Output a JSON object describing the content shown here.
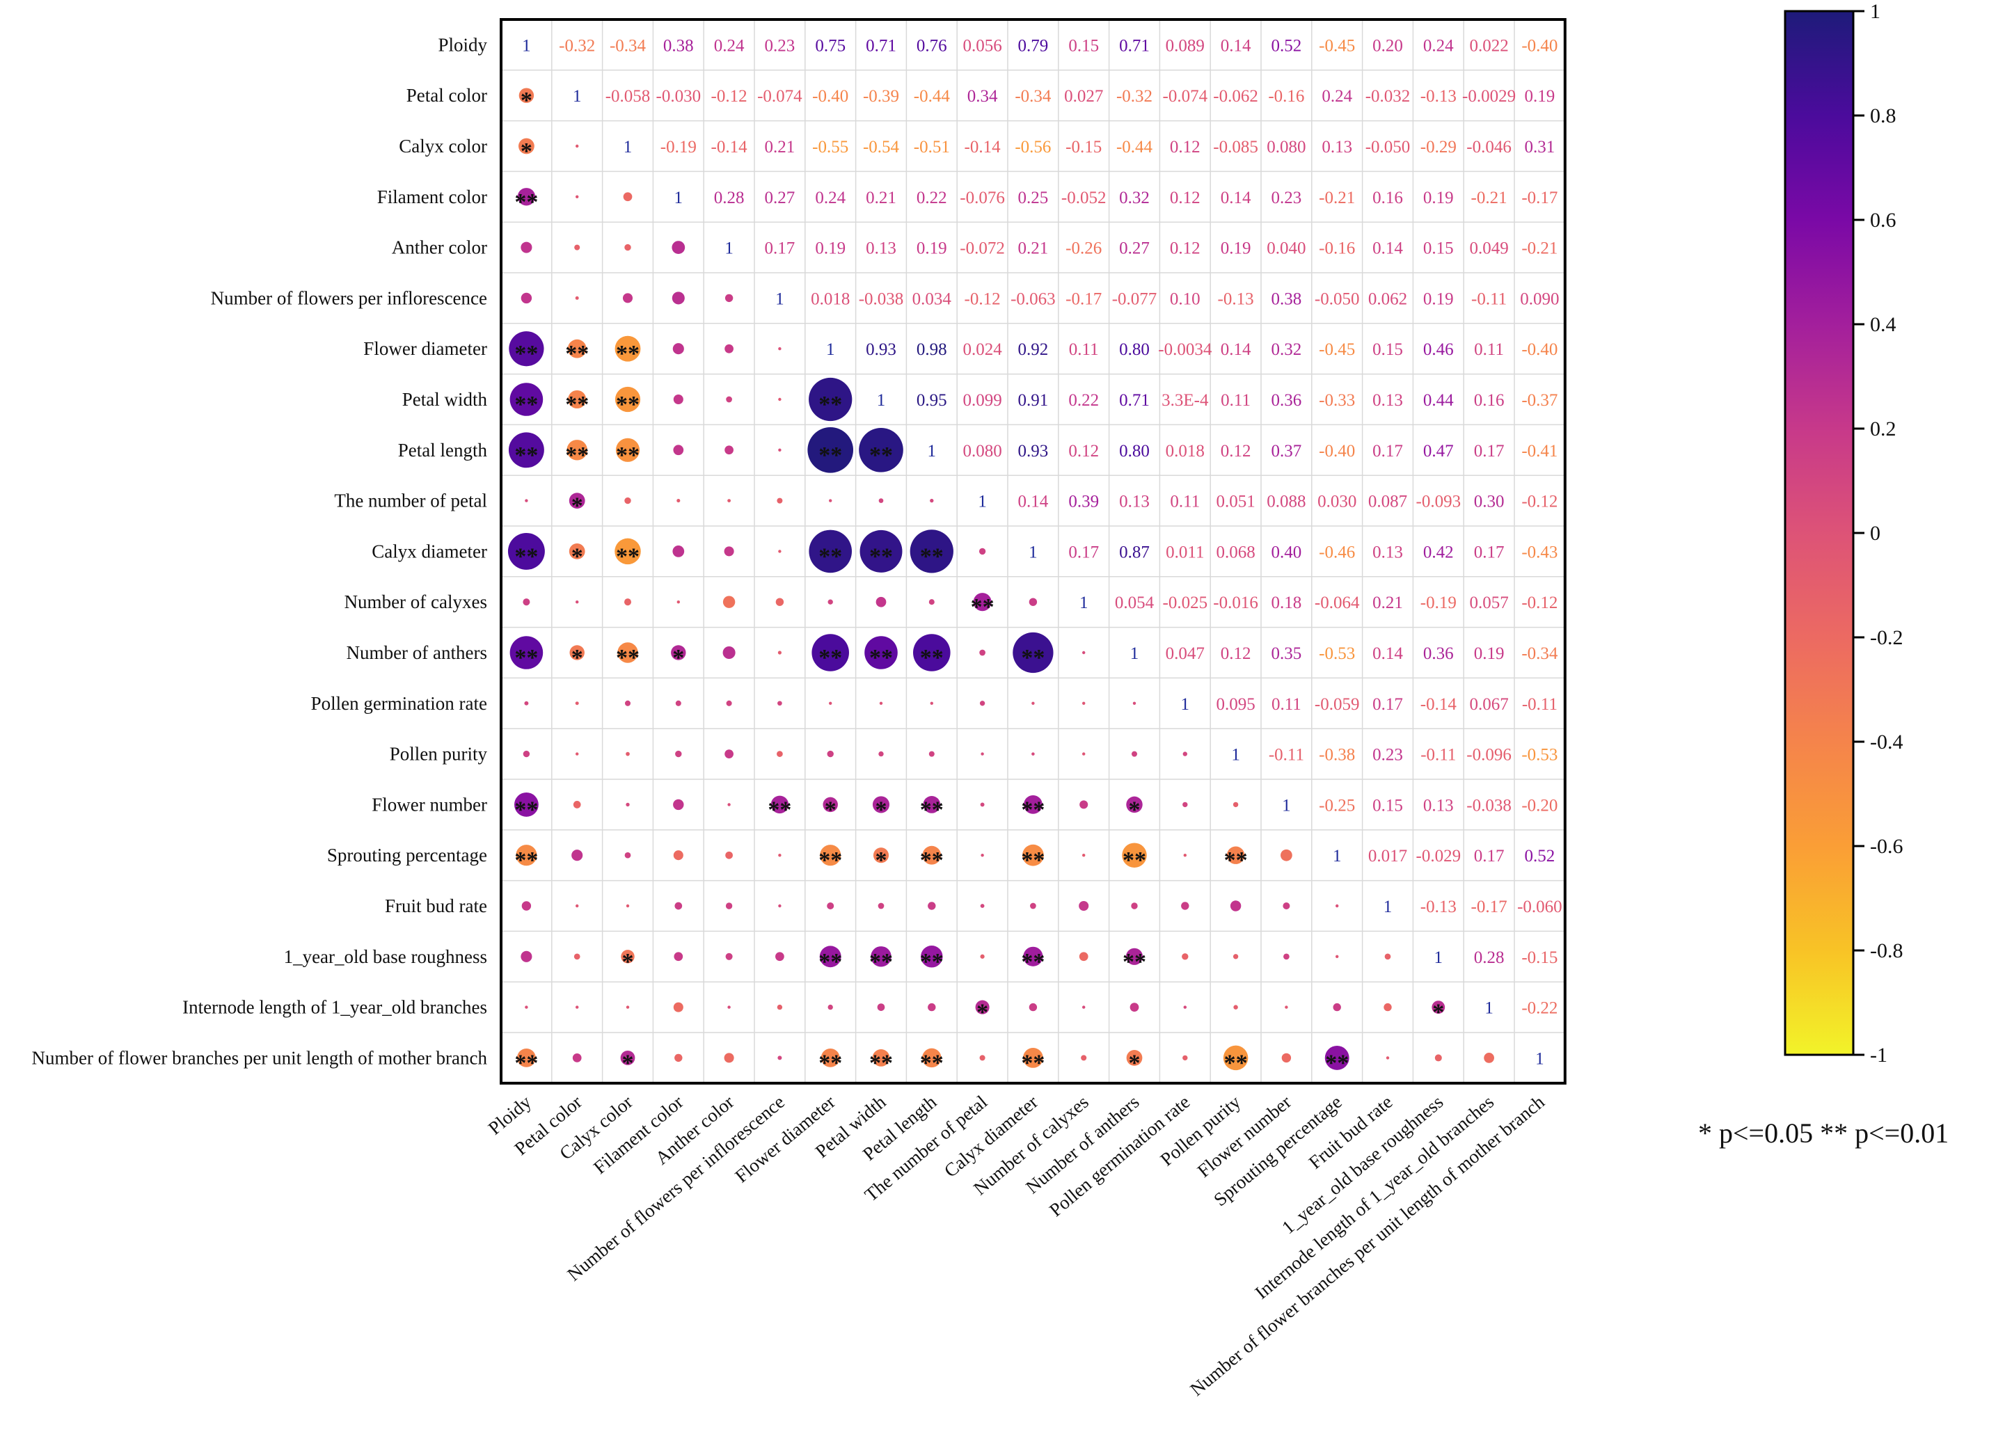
{
  "chart_data": {
    "type": "heatmap",
    "title": "",
    "variables": [
      "Ploidy",
      "Petal color",
      "Calyx color",
      "Filament color",
      "Anther color",
      "Number of flowers per inflorescence",
      "Flower diameter",
      "Petal width",
      "Petal length",
      "The number of petal",
      "Calyx diameter",
      "Number of calyxes",
      "Number of anthers",
      "Pollen germination rate",
      "Pollen purity",
      "Flower number",
      "Sprouting percentage",
      "Fruit bud rate",
      "1_year_old base roughness",
      "Internode length of 1_year_old branches",
      "Number of flower branches per unit length of mother branch"
    ],
    "upper_labels": [
      [
        "1",
        "-0.32",
        "-0.34",
        "0.38",
        "0.24",
        "0.23",
        "0.75",
        "0.71",
        "0.76",
        "0.056",
        "0.79",
        "0.15",
        "0.71",
        "0.089",
        "0.14",
        "0.52",
        "-0.45",
        "0.20",
        "0.24",
        "0.022",
        "-0.40"
      ],
      [
        "",
        "1",
        "-0.058",
        "-0.030",
        "-0.12",
        "-0.074",
        "-0.40",
        "-0.39",
        "-0.44",
        "0.34",
        "-0.34",
        "0.027",
        "-0.32",
        "-0.074",
        "-0.062",
        "-0.16",
        "0.24",
        "-0.032",
        "-0.13",
        "-0.0029",
        "0.19"
      ],
      [
        "",
        "",
        "1",
        "-0.19",
        "-0.14",
        "0.21",
        "-0.55",
        "-0.54",
        "-0.51",
        "-0.14",
        "-0.56",
        "-0.15",
        "-0.44",
        "0.12",
        "-0.085",
        "0.080",
        "0.13",
        "-0.050",
        "-0.29",
        "-0.046",
        "0.31"
      ],
      [
        "",
        "",
        "",
        "1",
        "0.28",
        "0.27",
        "0.24",
        "0.21",
        "0.22",
        "-0.076",
        "0.25",
        "-0.052",
        "0.32",
        "0.12",
        "0.14",
        "0.23",
        "-0.21",
        "0.16",
        "0.19",
        "-0.21",
        "-0.17"
      ],
      [
        "",
        "",
        "",
        "",
        "1",
        "0.17",
        "0.19",
        "0.13",
        "0.19",
        "-0.072",
        "0.21",
        "-0.26",
        "0.27",
        "0.12",
        "0.19",
        "0.040",
        "-0.16",
        "0.14",
        "0.15",
        "0.049",
        "-0.21"
      ],
      [
        "",
        "",
        "",
        "",
        "",
        "1",
        "0.018",
        "-0.038",
        "0.034",
        "-0.12",
        "-0.063",
        "-0.17",
        "-0.077",
        "0.10",
        "-0.13",
        "0.38",
        "-0.050",
        "0.062",
        "0.19",
        "-0.11",
        "0.090"
      ],
      [
        "",
        "",
        "",
        "",
        "",
        "",
        "1",
        "0.93",
        "0.98",
        "0.024",
        "0.92",
        "0.11",
        "0.80",
        "-0.0034",
        "0.14",
        "0.32",
        "-0.45",
        "0.15",
        "0.46",
        "0.11",
        "-0.40"
      ],
      [
        "",
        "",
        "",
        "",
        "",
        "",
        "",
        "1",
        "0.95",
        "0.099",
        "0.91",
        "0.22",
        "0.71",
        "3.3E-4",
        "0.11",
        "0.36",
        "-0.33",
        "0.13",
        "0.44",
        "0.16",
        "-0.37"
      ],
      [
        "",
        "",
        "",
        "",
        "",
        "",
        "",
        "",
        "1",
        "0.080",
        "0.93",
        "0.12",
        "0.80",
        "0.018",
        "0.12",
        "0.37",
        "-0.40",
        "0.17",
        "0.47",
        "0.17",
        "-0.41"
      ],
      [
        "",
        "",
        "",
        "",
        "",
        "",
        "",
        "",
        "",
        "1",
        "0.14",
        "0.39",
        "0.13",
        "0.11",
        "0.051",
        "0.088",
        "0.030",
        "0.087",
        "-0.093",
        "0.30",
        "-0.12"
      ],
      [
        "",
        "",
        "",
        "",
        "",
        "",
        "",
        "",
        "",
        "",
        "1",
        "0.17",
        "0.87",
        "0.011",
        "0.068",
        "0.40",
        "-0.46",
        "0.13",
        "0.42",
        "0.17",
        "-0.43"
      ],
      [
        "",
        "",
        "",
        "",
        "",
        "",
        "",
        "",
        "",
        "",
        "",
        "1",
        "0.054",
        "-0.025",
        "-0.016",
        "0.18",
        "-0.064",
        "0.21",
        "-0.19",
        "0.057",
        "-0.12"
      ],
      [
        "",
        "",
        "",
        "",
        "",
        "",
        "",
        "",
        "",
        "",
        "",
        "",
        "1",
        "0.047",
        "0.12",
        "0.35",
        "-0.53",
        "0.14",
        "0.36",
        "0.19",
        "-0.34"
      ],
      [
        "",
        "",
        "",
        "",
        "",
        "",
        "",
        "",
        "",
        "",
        "",
        "",
        "",
        "1",
        "0.095",
        "0.11",
        "-0.059",
        "0.17",
        "-0.14",
        "0.067",
        "-0.11"
      ],
      [
        "",
        "",
        "",
        "",
        "",
        "",
        "",
        "",
        "",
        "",
        "",
        "",
        "",
        "",
        "1",
        "-0.11",
        "-0.38",
        "0.23",
        "-0.11",
        "-0.096",
        "-0.53"
      ],
      [
        "",
        "",
        "",
        "",
        "",
        "",
        "",
        "",
        "",
        "",
        "",
        "",
        "",
        "",
        "",
        "1",
        "-0.25",
        "0.15",
        "0.13",
        "-0.038",
        "-0.20"
      ],
      [
        "",
        "",
        "",
        "",
        "",
        "",
        "",
        "",
        "",
        "",
        "",
        "",
        "",
        "",
        "",
        "",
        "1",
        "0.017",
        "-0.029",
        "0.17",
        "0.52"
      ],
      [
        "",
        "",
        "",
        "",
        "",
        "",
        "",
        "",
        "",
        "",
        "",
        "",
        "",
        "",
        "",
        "",
        "",
        "1",
        "-0.13",
        "-0.17",
        "-0.060"
      ],
      [
        "",
        "",
        "",
        "",
        "",
        "",
        "",
        "",
        "",
        "",
        "",
        "",
        "",
        "",
        "",
        "",
        "",
        "",
        "1",
        "0.28",
        "-0.15"
      ],
      [
        "",
        "",
        "",
        "",
        "",
        "",
        "",
        "",
        "",
        "",
        "",
        "",
        "",
        "",
        "",
        "",
        "",
        "",
        "",
        "1",
        "-0.22"
      ],
      [
        "",
        "",
        "",
        "",
        "",
        "",
        "",
        "",
        "",
        "",
        "",
        "",
        "",
        "",
        "",
        "",
        "",
        "",
        "",
        "",
        "1"
      ]
    ],
    "significance": [
      [
        "",
        "",
        "",
        "",
        "",
        "",
        "",
        "",
        "",
        "",
        "",
        "",
        "",
        "",
        "",
        "",
        "",
        "",
        "",
        "",
        ""
      ],
      [
        "*",
        "",
        "",
        "",
        "",
        "",
        "",
        "",
        "",
        "",
        "",
        "",
        "",
        "",
        "",
        "",
        "",
        "",
        "",
        "",
        ""
      ],
      [
        "*",
        "",
        "",
        "",
        "",
        "",
        "",
        "",
        "",
        "",
        "",
        "",
        "",
        "",
        "",
        "",
        "",
        "",
        "",
        "",
        ""
      ],
      [
        "**",
        "",
        "",
        "",
        "",
        "",
        "",
        "",
        "",
        "",
        "",
        "",
        "",
        "",
        "",
        "",
        "",
        "",
        "",
        "",
        ""
      ],
      [
        "",
        "",
        "",
        "",
        "",
        "",
        "",
        "",
        "",
        "",
        "",
        "",
        "",
        "",
        "",
        "",
        "",
        "",
        "",
        "",
        ""
      ],
      [
        "",
        "",
        "",
        "",
        "",
        "",
        "",
        "",
        "",
        "",
        "",
        "",
        "",
        "",
        "",
        "",
        "",
        "",
        "",
        "",
        ""
      ],
      [
        "**",
        "**",
        "**",
        "",
        "",
        "",
        "",
        "",
        "",
        "",
        "",
        "",
        "",
        "",
        "",
        "",
        "",
        "",
        "",
        "",
        ""
      ],
      [
        "**",
        "**",
        "**",
        "",
        "",
        "",
        "**",
        "",
        "",
        "",
        "",
        "",
        "",
        "",
        "",
        "",
        "",
        "",
        "",
        "",
        ""
      ],
      [
        "**",
        "**",
        "**",
        "",
        "",
        "",
        "**",
        "**",
        "",
        "",
        "",
        "",
        "",
        "",
        "",
        "",
        "",
        "",
        "",
        "",
        ""
      ],
      [
        "",
        "*",
        "",
        "",
        "",
        "",
        "",
        "",
        "",
        "",
        "",
        "",
        "",
        "",
        "",
        "",
        "",
        "",
        "",
        "",
        ""
      ],
      [
        "**",
        "*",
        "**",
        "",
        "",
        "",
        "**",
        "**",
        "**",
        "",
        "",
        "",
        "",
        "",
        "",
        "",
        "",
        "",
        "",
        "",
        ""
      ],
      [
        "",
        "",
        "",
        "",
        "",
        "",
        "",
        "",
        "",
        "**",
        "",
        "",
        "",
        "",
        "",
        "",
        "",
        "",
        "",
        "",
        ""
      ],
      [
        "**",
        "*",
        "**",
        "*",
        "",
        "",
        "**",
        "**",
        "**",
        "",
        "**",
        "",
        "",
        "",
        "",
        "",
        "",
        "",
        "",
        "",
        ""
      ],
      [
        "",
        "",
        "",
        "",
        "",
        "",
        "",
        "",
        "",
        "",
        "",
        "",
        "",
        "",
        "",
        "",
        "",
        "",
        "",
        "",
        ""
      ],
      [
        "",
        "",
        "",
        "",
        "",
        "",
        "",
        "",
        "",
        "",
        "",
        "",
        "",
        "",
        "",
        "",
        "",
        "",
        "",
        "",
        ""
      ],
      [
        "**",
        "",
        "",
        "",
        "",
        "**",
        "*",
        "*",
        "**",
        "",
        "**",
        "",
        "*",
        "",
        "",
        "",
        "",
        "",
        "",
        "",
        ""
      ],
      [
        "**",
        "",
        "",
        "",
        "",
        "",
        "**",
        "*",
        "**",
        "",
        "**",
        "",
        "**",
        "",
        "**",
        "",
        "",
        "",
        "",
        "",
        ""
      ],
      [
        "",
        "",
        "",
        "",
        "",
        "",
        "",
        "",
        "",
        "",
        "",
        "",
        "",
        "",
        "",
        "",
        "",
        "",
        "",
        "",
        ""
      ],
      [
        "",
        "",
        "*",
        "",
        "",
        "",
        "**",
        "**",
        "**",
        "",
        "**",
        "",
        "**",
        "",
        "",
        "",
        "",
        "",
        "",
        "",
        ""
      ],
      [
        "",
        "",
        "",
        "",
        "",
        "",
        "",
        "",
        "",
        "*",
        "",
        "",
        "",
        "",
        "",
        "",
        "",
        "",
        "*",
        "",
        ""
      ],
      [
        "**",
        "",
        "*",
        "",
        "",
        "",
        "**",
        "**",
        "**",
        "",
        "**",
        "",
        "*",
        "",
        "**",
        "",
        "**",
        "",
        "",
        "",
        ""
      ]
    ],
    "colorbar": {
      "range": [
        -1,
        1
      ],
      "ticks": [
        "1",
        "0.8",
        "0.6",
        "0.4",
        "0.2",
        "0",
        "-0.2",
        "-0.4",
        "-0.6",
        "-0.8",
        "-1"
      ],
      "colors": [
        "#1e1b7a",
        "#4b0b9c",
        "#7a09a6",
        "#a31f9c",
        "#c7398a",
        "#dd5377",
        "#ec6a62",
        "#f5844b",
        "#fa9e36",
        "#f8c326",
        "#f2f329"
      ]
    },
    "legend_note": "* p<=0.05  ** p<=0.01",
    "xlabel": "",
    "ylabel": ""
  }
}
